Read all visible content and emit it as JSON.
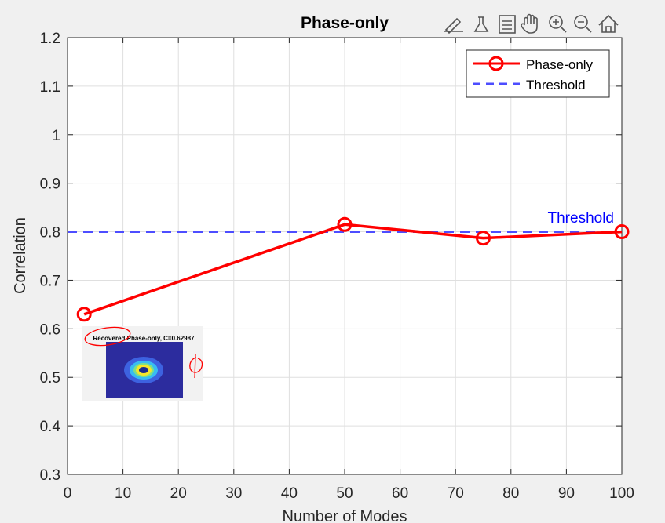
{
  "chart_data": {
    "type": "line",
    "title": "Phase-only",
    "xlabel": "Number of Modes",
    "ylabel": "Correlation",
    "xlim": [
      0,
      100
    ],
    "ylim": [
      0.3,
      1.2
    ],
    "xticks": [
      0,
      10,
      20,
      30,
      40,
      50,
      60,
      70,
      80,
      90,
      100
    ],
    "yticks": [
      0.3,
      0.4,
      0.5,
      0.6,
      0.7,
      0.8,
      0.9,
      1,
      1.1,
      1.2
    ],
    "ytick_labels": [
      "0.3",
      "0.4",
      "0.5",
      "0.6",
      "0.7",
      "0.8",
      "0.9",
      "1",
      "1.1",
      "1.2"
    ],
    "grid": true,
    "legend_location": "top-right",
    "series": [
      {
        "name": "Phase-only",
        "x": [
          3,
          50,
          75,
          100
        ],
        "y": [
          0.63,
          0.815,
          0.787,
          0.8
        ],
        "color": "#ff0000",
        "marker": "circle",
        "linestyle": "solid"
      },
      {
        "name": "Threshold",
        "x": [
          0,
          100
        ],
        "y": [
          0.8,
          0.8
        ],
        "color": "#4d4dff",
        "linestyle": "dashed"
      }
    ],
    "annotations": [
      {
        "text": "Threshold",
        "x": 100,
        "y": 0.8,
        "color": "#0000ff"
      }
    ]
  },
  "inset": {
    "title": "Recovered Phase-only, C=0.62987",
    "background": "#2c2c9e",
    "ring_colors": [
      "#3d62e0",
      "#38bdf2",
      "#7ce08a",
      "#f5e62a",
      "#1a2a8c"
    ],
    "annotation_color": "#ff0000"
  },
  "toolbar": {
    "icons": [
      "brush-icon",
      "flask-icon",
      "datatip-icon",
      "pan-icon",
      "zoom-in-icon",
      "zoom-out-icon",
      "home-icon"
    ]
  }
}
